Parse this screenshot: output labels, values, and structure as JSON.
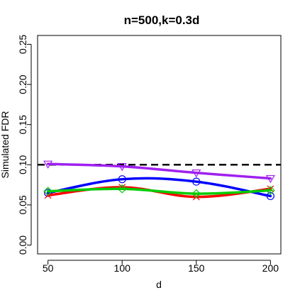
{
  "chart_data": {
    "type": "line",
    "title": "n=500,k=0.3d",
    "xlabel": "d",
    "ylabel": "Simulated FDR",
    "x": [
      50,
      100,
      150,
      200
    ],
    "xlim": [
      43,
      207
    ],
    "ylim": [
      -0.011,
      0.261
    ],
    "xticks": [
      50,
      100,
      150,
      200
    ],
    "yticks": [
      0.0,
      0.05,
      0.1,
      0.15,
      0.2,
      0.25
    ],
    "ytick_labels": [
      "0.00",
      "0.05",
      "0.10",
      "0.15",
      "0.20",
      "0.25"
    ],
    "reference_line": {
      "y": 0.1,
      "style": "dashed",
      "color": "#000000"
    },
    "grid": false,
    "legend": "none",
    "series": [
      {
        "values": [
          0.101,
          0.098,
          0.09,
          0.083
        ],
        "color": "#a020f0",
        "marker": "triangle-down"
      },
      {
        "values": [
          0.065,
          0.082,
          0.079,
          0.061
        ],
        "color": "#0000ff",
        "marker": "circle"
      },
      {
        "values": [
          0.062,
          0.072,
          0.06,
          0.07
        ],
        "color": "#ff0000",
        "marker": "x"
      },
      {
        "values": [
          0.067,
          0.07,
          0.064,
          0.068
        ],
        "color": "#00cd00",
        "marker": "diamond"
      }
    ]
  }
}
